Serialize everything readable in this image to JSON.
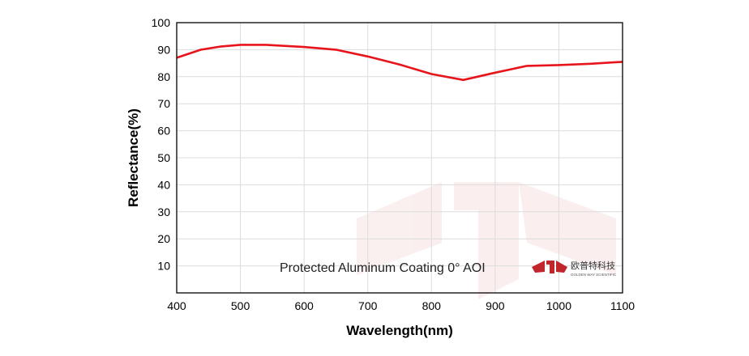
{
  "chart_data": {
    "type": "line",
    "title": "",
    "xlabel": "Wavelength(nm)",
    "ylabel": "Reflectance(%)",
    "xlim": [
      400,
      1100
    ],
    "ylim": [
      0,
      100
    ],
    "xticks": [
      400,
      500,
      600,
      700,
      800,
      900,
      1000,
      1100
    ],
    "yticks": [
      10,
      20,
      30,
      40,
      50,
      60,
      70,
      80,
      90,
      100
    ],
    "grid": true,
    "annotation": "Protected Aluminum Coating  0°  AOI",
    "logo_text": "欧普特科技",
    "logo_subtext": "GOLDEN WAY SCIENTIFIC",
    "series": [
      {
        "color": "#e8141c",
        "x": [
          400,
          438,
          470,
          500,
          540,
          600,
          650,
          700,
          750,
          800,
          850,
          900,
          950,
          1000,
          1050,
          1100
        ],
        "y": [
          87,
          90,
          91.2,
          91.8,
          91.8,
          91,
          90,
          87.5,
          84.5,
          81,
          78.8,
          81.5,
          84,
          84.3,
          84.8,
          85.5
        ]
      }
    ]
  }
}
